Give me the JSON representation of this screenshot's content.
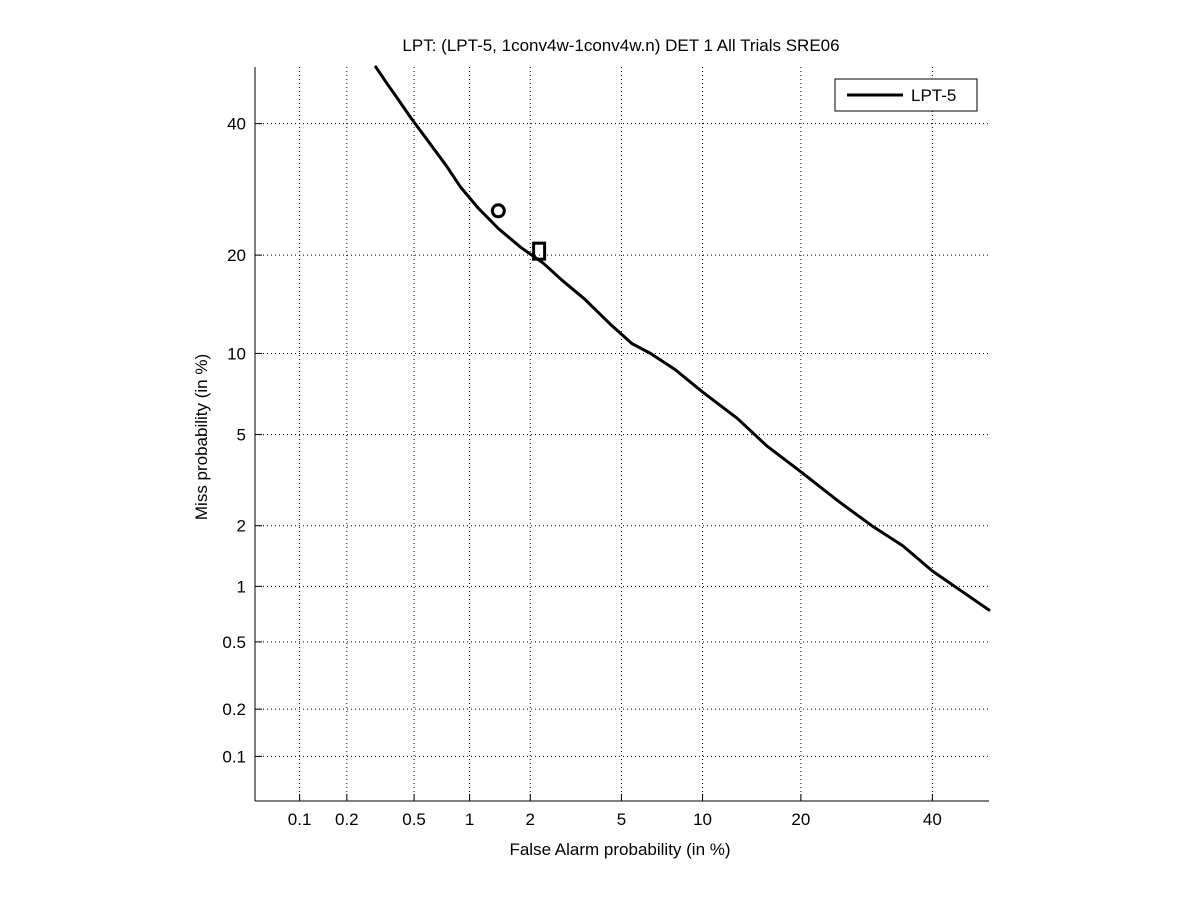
{
  "chart_data": {
    "type": "line",
    "title": "LPT: (LPT-5, 1conv4w-1conv4w.n) DET 1 All Trials SRE06",
    "xlabel": "False Alarm probability (in %)",
    "ylabel": "Miss probability (in %)",
    "x_scale": "probit",
    "y_scale": "probit",
    "xlim": [
      0.05,
      50
    ],
    "ylim": [
      0.05,
      50
    ],
    "x_ticks": [
      0.1,
      0.2,
      0.5,
      1,
      2,
      5,
      10,
      20,
      40
    ],
    "x_tick_labels": [
      "0.1",
      "0.2",
      "0.5",
      "1",
      "2",
      "5",
      "10",
      "20",
      "40"
    ],
    "y_ticks": [
      0.1,
      0.2,
      0.5,
      1,
      2,
      5,
      10,
      20,
      40
    ],
    "y_tick_labels": [
      "0.1",
      "0.2",
      "0.5",
      "1",
      "2",
      "5",
      "10",
      "20",
      "40"
    ],
    "grid": true,
    "legend_position": "top-right",
    "series": [
      {
        "name": "LPT-5",
        "color": "#000000",
        "x": [
          0.3,
          0.35,
          0.4,
          0.48,
          0.6,
          0.75,
          0.9,
          1.1,
          1.4,
          1.8,
          2.3,
          2.8,
          3.5,
          4.5,
          5.5,
          6.5,
          8.0,
          10.0,
          13.0,
          16.0,
          20.0,
          25.0,
          30.0,
          35.0,
          40.0,
          45.0,
          50.0
        ],
        "y": [
          50.0,
          47.0,
          44.5,
          41.0,
          37.0,
          33.0,
          29.5,
          26.5,
          23.5,
          21.0,
          19.0,
          17.0,
          15.0,
          12.5,
          10.8,
          10.0,
          8.8,
          7.3,
          5.8,
          4.5,
          3.5,
          2.6,
          2.0,
          1.6,
          1.2,
          0.95,
          0.75
        ]
      }
    ],
    "markers": [
      {
        "shape": "circle",
        "x": 1.4,
        "y": 26.0
      },
      {
        "shape": "square",
        "x": 2.2,
        "y": 20.5
      }
    ]
  }
}
